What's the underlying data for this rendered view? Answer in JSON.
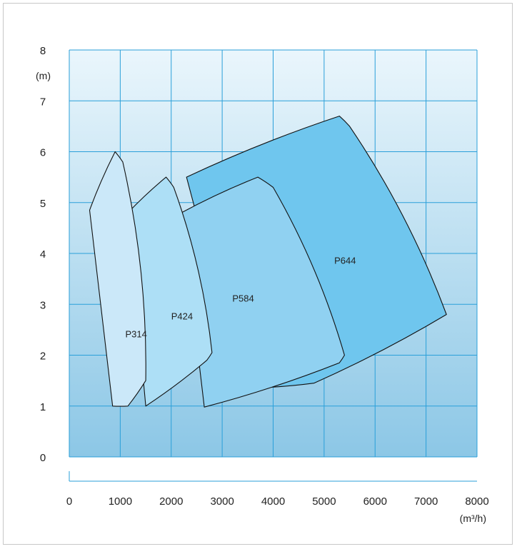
{
  "chart_data": {
    "type": "area",
    "xlabel": "(m³/h)",
    "ylabel": "(m)",
    "xlim": [
      0,
      8000
    ],
    "ylim": [
      0,
      8
    ],
    "x_ticks": [
      "0",
      "1000",
      "2000",
      "3000",
      "4000",
      "5000",
      "6000",
      "7000",
      "8000"
    ],
    "y_ticks": [
      "0",
      "1",
      "2",
      "3",
      "4",
      "5",
      "6",
      "7",
      "8"
    ],
    "grid": true,
    "series": [
      {
        "name": "P644",
        "color": "#6fc6ee",
        "label_at": [
          5200,
          3.8
        ],
        "points": [
          [
            2300,
            5.5
          ],
          [
            5300,
            6.7
          ],
          [
            5500,
            6.5
          ],
          [
            7400,
            2.8
          ],
          [
            4800,
            1.45
          ],
          [
            3400,
            1.35
          ]
        ]
      },
      {
        "name": "P584",
        "color": "#90d1f1",
        "label_at": [
          3200,
          3.05
        ],
        "points": [
          [
            2200,
            4.8
          ],
          [
            3700,
            5.5
          ],
          [
            4000,
            5.3
          ],
          [
            5400,
            2.0
          ],
          [
            5300,
            1.85
          ],
          [
            2650,
            0.98
          ]
        ]
      },
      {
        "name": "P424",
        "color": "#addff6",
        "label_at": [
          2000,
          2.7
        ],
        "points": [
          [
            1150,
            4.8
          ],
          [
            1900,
            5.5
          ],
          [
            2050,
            5.3
          ],
          [
            2800,
            2.05
          ],
          [
            2700,
            1.9
          ],
          [
            1500,
            1.0
          ]
        ]
      },
      {
        "name": "P314",
        "color": "#cbe8f9",
        "label_at": [
          1100,
          2.35
        ],
        "points": [
          [
            400,
            4.85
          ],
          [
            900,
            6.0
          ],
          [
            1050,
            5.8
          ],
          [
            1500,
            1.5
          ],
          [
            1150,
            1.0
          ],
          [
            850,
            1.0
          ]
        ]
      }
    ]
  }
}
